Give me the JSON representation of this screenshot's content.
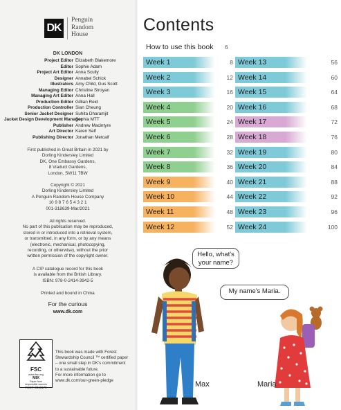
{
  "imprint": {
    "logo": "DK",
    "publisher_lines": [
      "Penguin",
      "Random",
      "House"
    ],
    "office": "DK LONDON",
    "credits": [
      {
        "role": "Project Editor",
        "name": "Elizabeth Blakemore"
      },
      {
        "role": "Editor",
        "name": "Sophie Adam"
      },
      {
        "role": "Project Art Editor",
        "name": "Anna Scully"
      },
      {
        "role": "Designer",
        "name": "Annabel Schick"
      },
      {
        "role": "Illustrators",
        "name": "Amy Child, Gus Scott"
      },
      {
        "role": "Managing Editor",
        "name": "Christine Stroyan"
      },
      {
        "role": "Managing Art Editor",
        "name": "Anna Hall"
      },
      {
        "role": "Production Editor",
        "name": "Gillian Reid"
      },
      {
        "role": "Production Controller",
        "name": "Sian Cheung"
      },
      {
        "role": "Senior Jacket Designer",
        "name": "Suhita Dharamjit"
      },
      {
        "role": "Jacket Design Development Manager",
        "name": "Sophia MTT"
      },
      {
        "role": "Publisher",
        "name": "Andrew Macintyre"
      },
      {
        "role": "Art Director",
        "name": "Karen Self"
      },
      {
        "role": "Publishing Director",
        "name": "Jonathan Metcalf"
      }
    ],
    "first_published": [
      "First published in Great Britain in 2021 by",
      "Dorling Kindersley Limited",
      "DK, One Embassy Gardens,",
      "8 Viaduct Gardens,",
      "London, SW11 7BW"
    ],
    "copyright": [
      "Copyright © 2021",
      "Dorling Kindersley Limited",
      "A Penguin Random House Company",
      "10 9 8 7 6 5 4 3 2 1",
      "001-318639-Mar/2021"
    ],
    "rights": [
      "All rights reserved.",
      "No part of this publication may be reproduced,",
      "stored in or introduced into a retrieval system,",
      "or transmitted, in any form, or by any means",
      "(electronic, mechanical, photocopying,",
      "recording, or otherwise), without the prior",
      "written permission of the copyright owner."
    ],
    "catalogue": [
      "A CIP catalogue record for this book",
      "is available from the British Library.",
      "ISBN: 978-0-2414-3942-5"
    ],
    "printed": "Printed and bound in China",
    "curious": "For the curious",
    "url": "www.dk.com",
    "fsc": {
      "label": "FSC",
      "url": "www.fsc.org",
      "mix": "MIX",
      "mix_sub": [
        "Paper from",
        "responsible sources"
      ],
      "code": "FSC® C018179"
    },
    "fsc_note": [
      "This book was made with Forest",
      "Stewardship Council ™ certified paper",
      "– one small step in DK's commitment",
      "to a sustainable future.",
      "For more information go to",
      "www.dk.com/our-green-pledge"
    ]
  },
  "contents": {
    "title": "Contents",
    "how_to": {
      "label": "How to use this book",
      "page": "6"
    },
    "colors": {
      "blue": "#7fcad8",
      "green": "#8fcf8f",
      "orange": "#f7b260",
      "purple": "#d8a9d3"
    },
    "weeks_left": [
      {
        "label": "Week 1",
        "page": "8",
        "color": "#7fcad8"
      },
      {
        "label": "Week 2",
        "page": "12",
        "color": "#7fcad8"
      },
      {
        "label": "Week 3",
        "page": "16",
        "color": "#7fcad8"
      },
      {
        "label": "Week 4",
        "page": "20",
        "color": "#8fcf8f"
      },
      {
        "label": "Week 5",
        "page": "24",
        "color": "#8fcf8f"
      },
      {
        "label": "Week 6",
        "page": "28",
        "color": "#8fcf8f"
      },
      {
        "label": "Week 7",
        "page": "32",
        "color": "#8fcf8f"
      },
      {
        "label": "Week 8",
        "page": "36",
        "color": "#8fcf8f"
      },
      {
        "label": "Week 9",
        "page": "40",
        "color": "#f7b260"
      },
      {
        "label": "Week 10",
        "page": "44",
        "color": "#f7b260"
      },
      {
        "label": "Week 11",
        "page": "48",
        "color": "#f7b260"
      },
      {
        "label": "Week 12",
        "page": "52",
        "color": "#f7b260"
      }
    ],
    "weeks_right": [
      {
        "label": "Week 13",
        "page": "56",
        "color": "#7fcad8"
      },
      {
        "label": "Week 14",
        "page": "60",
        "color": "#7fcad8"
      },
      {
        "label": "Week 15",
        "page": "64",
        "color": "#7fcad8"
      },
      {
        "label": "Week 16",
        "page": "68",
        "color": "#7fcad8"
      },
      {
        "label": "Week 17",
        "page": "72",
        "color": "#d8a9d3"
      },
      {
        "label": "Week 18",
        "page": "76",
        "color": "#d8a9d3"
      },
      {
        "label": "Week 19",
        "page": "80",
        "color": "#7fcad8"
      },
      {
        "label": "Week 20",
        "page": "84",
        "color": "#7fcad8"
      },
      {
        "label": "Week 21",
        "page": "88",
        "color": "#7fcad8"
      },
      {
        "label": "Week 22",
        "page": "92",
        "color": "#7fcad8"
      },
      {
        "label": "Week 23",
        "page": "96",
        "color": "#7fcad8"
      },
      {
        "label": "Week 24",
        "page": "100",
        "color": "#7fcad8"
      }
    ]
  },
  "illustration": {
    "bubble_max": [
      "Hello, what's",
      "your name?"
    ],
    "bubble_maria": "My name's Maria.",
    "name_max": "Max",
    "name_maria": "Maria"
  }
}
